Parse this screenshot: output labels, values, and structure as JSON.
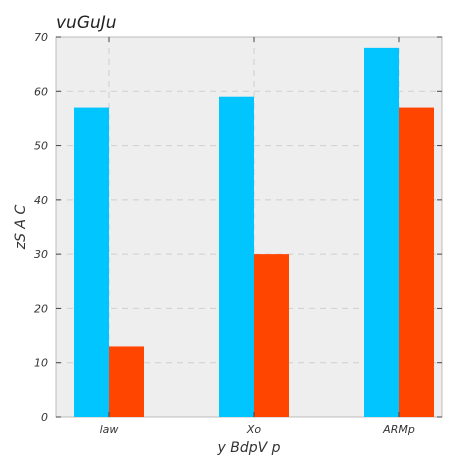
{
  "chart_data": {
    "type": "bar",
    "title": "vuGuJu",
    "xlabel": "y BdpV p",
    "ylabel": "zS A C",
    "categories": [
      "law",
      "Xo",
      "ARMp"
    ],
    "series": [
      {
        "values": [
          57,
          59,
          68
        ],
        "color": "#00c5ff"
      },
      {
        "values": [
          13,
          30,
          57
        ],
        "color": "#ff4500"
      }
    ],
    "ylim": [
      0,
      70
    ],
    "yticks": [
      0,
      10,
      20,
      30,
      40,
      50,
      60,
      70
    ],
    "grid": true,
    "background": "#eeeeee"
  }
}
